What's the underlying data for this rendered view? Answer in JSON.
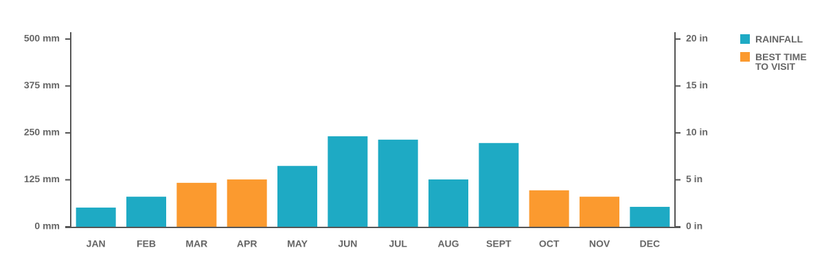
{
  "chart_data": {
    "type": "bar",
    "categories": [
      "JAN",
      "FEB",
      "MAR",
      "APR",
      "MAY",
      "JUN",
      "JUL",
      "AUG",
      "SEPT",
      "OCT",
      "NOV",
      "DEC"
    ],
    "series": [
      {
        "name": "RAINFALL",
        "color": "#1eaac4",
        "values": [
          51,
          80,
          null,
          null,
          162,
          241,
          232,
          126,
          223,
          null,
          null,
          53
        ]
      },
      {
        "name": "BEST TIME TO VISIT",
        "color": "#fb9a2f",
        "values": [
          null,
          null,
          117,
          126,
          null,
          null,
          null,
          null,
          null,
          97,
          80,
          null
        ]
      }
    ],
    "ylim": [
      0,
      500
    ],
    "yticks": [
      {
        "value": 0,
        "label": "0 mm"
      },
      {
        "value": 125,
        "label": "125 mm"
      },
      {
        "value": 250,
        "label": "250 mm"
      },
      {
        "value": 375,
        "label": "375 mm"
      },
      {
        "value": 500,
        "label": "500 mm"
      }
    ],
    "y2lim": [
      0,
      20
    ],
    "y2ticks": [
      {
        "value": 0,
        "label": "0 in"
      },
      {
        "value": 5,
        "label": "5 in"
      },
      {
        "value": 10,
        "label": "10 in"
      },
      {
        "value": 15,
        "label": "15 in"
      },
      {
        "value": 20,
        "label": "20 in"
      }
    ]
  }
}
